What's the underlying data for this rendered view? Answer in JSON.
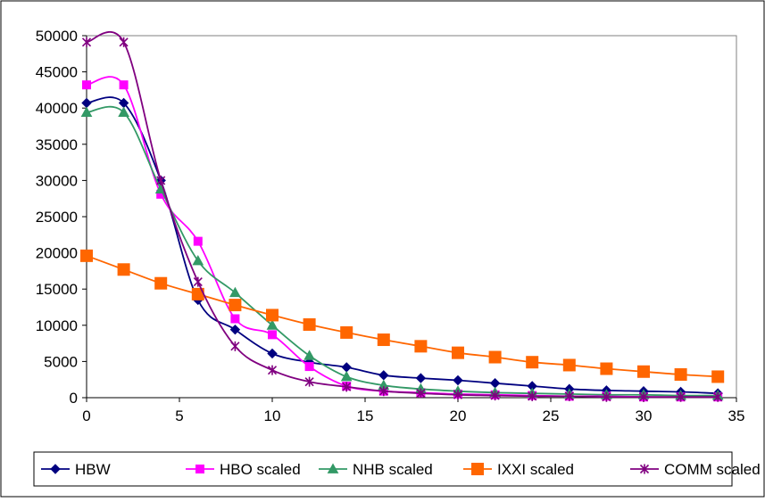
{
  "chart_data": {
    "type": "line",
    "title": "",
    "xlabel": "",
    "ylabel": "",
    "xlim": [
      0,
      35
    ],
    "ylim": [
      0,
      50000
    ],
    "x_ticks": [
      "0",
      "5",
      "10",
      "15",
      "20",
      "25",
      "30",
      "35"
    ],
    "y_ticks": [
      "0",
      "5000",
      "10000",
      "15000",
      "20000",
      "25000",
      "30000",
      "35000",
      "40000",
      "45000",
      "50000"
    ],
    "grid": false,
    "legend_position": "bottom",
    "series": [
      {
        "name": "HBW",
        "color": "#000080",
        "marker": "diamond",
        "x": [
          0,
          2,
          4,
          6,
          8,
          10,
          12,
          14,
          16,
          18,
          20,
          22,
          24,
          26,
          28,
          30,
          32,
          34
        ],
        "y": [
          40700,
          40700,
          30000,
          13500,
          9400,
          6100,
          4900,
          4200,
          3100,
          2700,
          2400,
          2000,
          1600,
          1200,
          1000,
          900,
          800,
          600
        ]
      },
      {
        "name": "HBO scaled",
        "color": "#ff00ff",
        "marker": "square",
        "x": [
          0,
          2,
          4,
          6,
          8,
          10,
          12,
          14,
          16,
          18,
          20,
          22,
          24,
          26,
          28,
          30,
          32,
          34
        ],
        "y": [
          43200,
          43200,
          28100,
          21600,
          10900,
          8700,
          4300,
          1600,
          900,
          700,
          500,
          400,
          300,
          200,
          200,
          100,
          100,
          100
        ]
      },
      {
        "name": "NHB scaled",
        "color": "#339966",
        "marker": "triangle",
        "x": [
          0,
          2,
          4,
          6,
          8,
          10,
          12,
          14,
          16,
          18,
          20,
          22,
          24,
          26,
          28,
          30,
          32,
          34
        ],
        "y": [
          39400,
          39400,
          28800,
          18900,
          14500,
          10000,
          5800,
          2900,
          1700,
          1200,
          900,
          700,
          600,
          500,
          400,
          400,
          300,
          300
        ]
      },
      {
        "name": "IXXI scaled",
        "color": "#ff6600",
        "marker": "square-large",
        "x": [
          0,
          2,
          4,
          6,
          8,
          10,
          12,
          14,
          16,
          18,
          20,
          22,
          24,
          26,
          28,
          30,
          32,
          34
        ],
        "y": [
          19600,
          17700,
          15800,
          14300,
          12800,
          11400,
          10100,
          9000,
          8000,
          7100,
          6200,
          5600,
          4900,
          4500,
          4000,
          3600,
          3200,
          2900
        ]
      },
      {
        "name": "COMM scaled",
        "color": "#800080",
        "marker": "star",
        "x": [
          0,
          2,
          4,
          6,
          8,
          10,
          12,
          14,
          16,
          18,
          20,
          22,
          24,
          26,
          28,
          30,
          32,
          34
        ],
        "y": [
          49100,
          49100,
          30000,
          16000,
          7100,
          3800,
          2200,
          1500,
          900,
          600,
          400,
          300,
          200,
          200,
          100,
          100,
          100,
          100
        ]
      }
    ]
  }
}
